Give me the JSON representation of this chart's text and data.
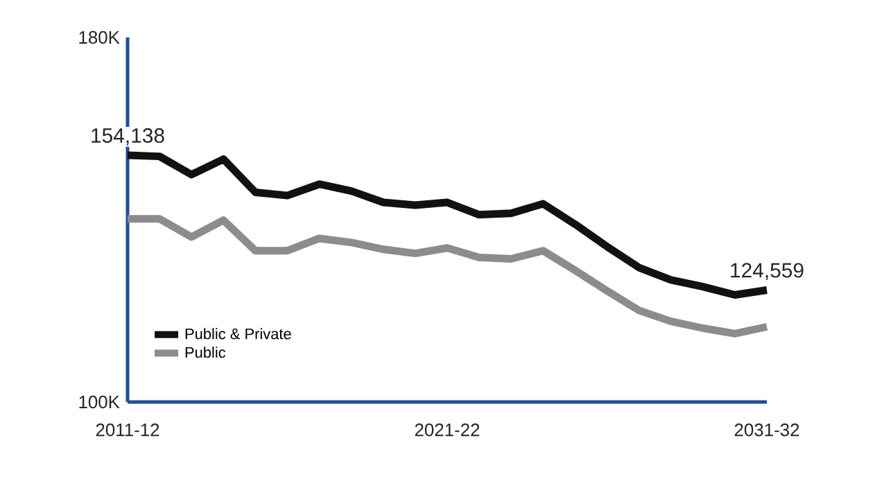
{
  "chart_data": {
    "type": "line",
    "categories": [
      "2011-12",
      null,
      null,
      null,
      null,
      null,
      null,
      null,
      null,
      null,
      "2021-22",
      null,
      null,
      null,
      null,
      null,
      null,
      null,
      null,
      null,
      "2031-32"
    ],
    "series": [
      {
        "name": "Public & Private",
        "color": "#111111",
        "values": [
          154138,
          153900,
          149900,
          153300,
          146000,
          145300,
          147800,
          146300,
          143800,
          143200,
          143800,
          141100,
          141400,
          143500,
          139000,
          134100,
          129500,
          126800,
          125300,
          123500,
          124559
        ],
        "value_labels": [
          "154,138",
          null,
          null,
          null,
          null,
          null,
          null,
          null,
          null,
          null,
          null,
          null,
          null,
          null,
          null,
          null,
          null,
          null,
          null,
          null,
          "124,559"
        ]
      },
      {
        "name": "Public",
        "color": "#8c8c8c",
        "values": [
          140200,
          140200,
          136200,
          139900,
          133200,
          133200,
          135900,
          135000,
          133500,
          132600,
          133800,
          131700,
          131400,
          133200,
          128900,
          124400,
          120100,
          117700,
          116200,
          115000,
          116500
        ]
      }
    ],
    "ylim": [
      100000,
      180000
    ],
    "yticks": [
      {
        "value": 100000,
        "label": "100K"
      },
      {
        "value": 180000,
        "label": "180K"
      }
    ],
    "legend": "bottom left",
    "marker": "none",
    "line_style": "solid"
  }
}
